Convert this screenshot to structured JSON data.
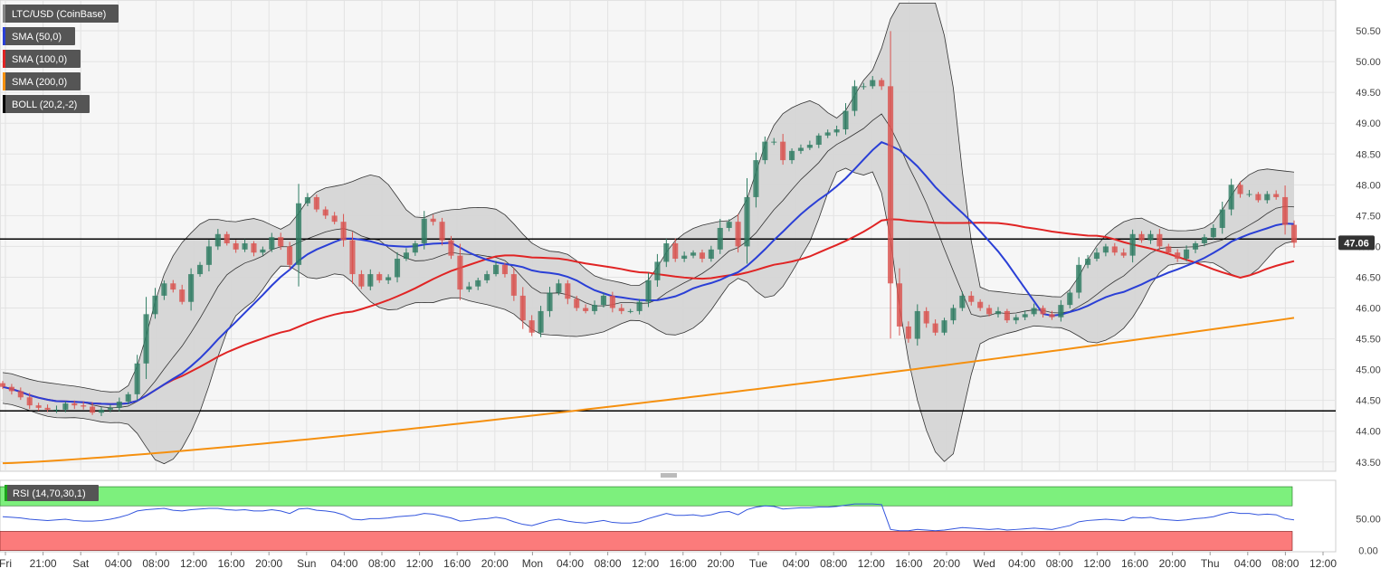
{
  "colors": {
    "background": "#ffffff",
    "plot_background": "#f6f6f6",
    "grid": "#e3e3e3",
    "bull_candle": "#2f7d63",
    "bear_candle": "#d9534f",
    "sma50": "#2a3fd6",
    "sma100": "#e02424",
    "sma200": "#f5900f",
    "bollinger_fill": "#d4d4d4",
    "bollinger_line": "#333333",
    "rsi_line": "#3355dd",
    "rsi_overbought_band": "#7df07d",
    "rsi_oversold_band": "#fb7b7b",
    "price_badge": "#333333",
    "legend_bg": "#555555"
  },
  "legend": [
    {
      "label": "LTC/USD (CoinBase)",
      "swatch": "#888888"
    },
    {
      "label": "SMA (50,0)",
      "swatch": "#2a3fd6"
    },
    {
      "label": "SMA (100,0)",
      "swatch": "#e02424"
    },
    {
      "label": "SMA (200,0)",
      "swatch": "#f5900f"
    },
    {
      "label": "BOLL (20,2,-2)",
      "swatch": "#000000"
    }
  ],
  "price_badge": "47.06",
  "rsi_label": "RSI (14,70,30,1)",
  "chart_data": {
    "type": "candlestick",
    "ylim": [
      43.35,
      51.0
    ],
    "y_ticks": [
      "43.50",
      "44.00",
      "44.50",
      "45.00",
      "45.50",
      "46.00",
      "46.50",
      "47.00",
      "47.50",
      "48.00",
      "48.50",
      "49.00",
      "49.50",
      "50.00",
      "50.50"
    ],
    "x_ticks": [
      "Fri",
      "21:00",
      "Sat",
      "04:00",
      "08:00",
      "12:00",
      "16:00",
      "20:00",
      "Sun",
      "04:00",
      "08:00",
      "12:00",
      "16:00",
      "20:00",
      "Mon",
      "04:00",
      "08:00",
      "12:00",
      "16:00",
      "20:00",
      "Tue",
      "04:00",
      "08:00",
      "12:00",
      "16:00",
      "20:00",
      "Wed",
      "04:00",
      "08:00",
      "12:00",
      "16:00",
      "20:00",
      "Thu",
      "04:00",
      "08:00",
      "12:00"
    ],
    "horizontal_levels": [
      47.12,
      44.33
    ],
    "close": [
      44.72,
      44.65,
      44.55,
      44.42,
      44.38,
      44.35,
      44.35,
      44.45,
      44.42,
      44.4,
      44.3,
      44.35,
      44.38,
      44.48,
      44.6,
      45.1,
      45.9,
      46.2,
      46.4,
      46.3,
      46.1,
      46.55,
      46.7,
      47.0,
      47.2,
      47.05,
      46.95,
      47.05,
      46.9,
      46.95,
      47.15,
      47.0,
      46.7,
      47.7,
      47.8,
      47.6,
      47.5,
      47.4,
      47.1,
      46.55,
      46.35,
      46.55,
      46.45,
      46.5,
      46.8,
      46.9,
      47.05,
      47.45,
      47.4,
      47.1,
      46.85,
      46.3,
      46.35,
      46.45,
      46.55,
      46.7,
      46.55,
      46.2,
      45.8,
      45.6,
      45.95,
      46.25,
      46.4,
      46.15,
      46.0,
      45.95,
      46.05,
      46.2,
      46.0,
      45.95,
      45.95,
      46.1,
      46.45,
      46.75,
      47.05,
      46.8,
      46.85,
      46.9,
      46.8,
      46.95,
      47.3,
      47.4,
      47.0,
      47.8,
      48.4,
      48.7,
      48.7,
      48.4,
      48.55,
      48.6,
      48.65,
      48.8,
      48.85,
      48.9,
      49.2,
      49.6,
      49.6,
      49.7,
      49.6,
      46.4,
      45.7,
      45.5,
      45.95,
      45.75,
      45.6,
      45.8,
      46.0,
      46.2,
      46.1,
      46.0,
      45.9,
      45.95,
      45.8,
      45.85,
      45.9,
      46.0,
      45.9,
      45.85,
      46.05,
      46.25,
      46.7,
      46.8,
      46.9,
      47.0,
      46.9,
      46.85,
      47.2,
      47.1,
      47.2,
      47.0,
      46.9,
      46.8,
      46.95,
      47.05,
      47.15,
      47.3,
      47.6,
      48.0,
      47.85,
      47.85,
      47.75,
      47.85,
      47.8,
      47.35,
      47.06
    ]
  },
  "rsi": {
    "levels": [
      70,
      30
    ],
    "y_ticks": [
      "50.00",
      "0.00"
    ],
    "ylim": [
      -2,
      110
    ],
    "values": [
      53,
      52,
      51,
      49,
      48,
      47,
      48,
      49,
      47,
      46,
      46,
      47,
      49,
      52,
      56,
      62,
      64,
      65,
      66,
      63,
      62,
      64,
      65,
      66,
      66,
      64,
      63,
      64,
      62,
      62,
      64,
      62,
      58,
      65,
      66,
      63,
      62,
      60,
      56,
      49,
      48,
      50,
      50,
      51,
      53,
      54,
      55,
      58,
      57,
      54,
      51,
      46,
      47,
      49,
      50,
      52,
      50,
      45,
      41,
      39,
      43,
      47,
      49,
      46,
      44,
      43,
      45,
      47,
      44,
      43,
      43,
      45,
      50,
      54,
      58,
      55,
      55,
      56,
      54,
      56,
      60,
      61,
      56,
      64,
      68,
      70,
      69,
      65,
      66,
      67,
      67,
      68,
      68,
      69,
      71,
      73,
      73,
      73,
      72,
      33,
      31,
      31,
      33,
      32,
      31,
      32,
      34,
      36,
      35,
      34,
      33,
      34,
      32,
      33,
      34,
      35,
      34,
      33,
      36,
      39,
      45,
      47,
      48,
      49,
      48,
      47,
      52,
      51,
      52,
      49,
      48,
      47,
      48,
      50,
      51,
      53,
      57,
      60,
      58,
      58,
      56,
      57,
      56,
      50,
      48
    ]
  }
}
